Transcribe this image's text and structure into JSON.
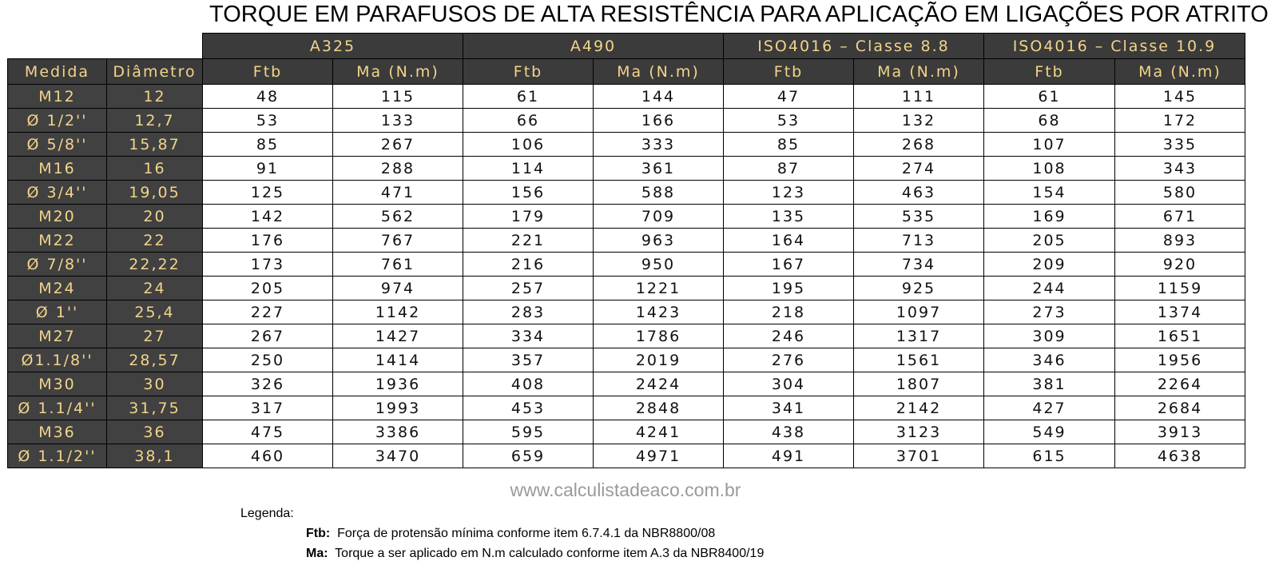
{
  "title": "TORQUE EM PARAFUSOS DE ALTA RESISTÊNCIA PARA APLICAÇÃO EM LIGAÇÕES POR ATRITO",
  "table": {
    "groups": [
      "A325",
      "A490",
      "ISO4016 – Classe 8.8",
      "ISO4016 – Classe 10.9"
    ],
    "columns": [
      "Medida",
      "Diâmetro",
      "Ftb",
      "Ma (N.m)",
      "Ftb",
      "Ma (N.m)",
      "Ftb",
      "Ma (N.m)",
      "Ftb",
      "Ma (N.m)"
    ],
    "rows": [
      [
        "M12",
        "12",
        48,
        115,
        61,
        144,
        47,
        111,
        61,
        145
      ],
      [
        "Ø 1/2''",
        "12,7",
        53,
        133,
        66,
        166,
        53,
        132,
        68,
        172
      ],
      [
        "Ø 5/8''",
        "15,87",
        85,
        267,
        106,
        333,
        85,
        268,
        107,
        335
      ],
      [
        "M16",
        "16",
        91,
        288,
        114,
        361,
        87,
        274,
        108,
        343
      ],
      [
        "Ø 3/4''",
        "19,05",
        125,
        471,
        156,
        588,
        123,
        463,
        154,
        580
      ],
      [
        "M20",
        "20",
        142,
        562,
        179,
        709,
        135,
        535,
        169,
        671
      ],
      [
        "M22",
        "22",
        176,
        767,
        221,
        963,
        164,
        713,
        205,
        893
      ],
      [
        "Ø 7/8''",
        "22,22",
        173,
        761,
        216,
        950,
        167,
        734,
        209,
        920
      ],
      [
        "M24",
        "24",
        205,
        974,
        257,
        1221,
        195,
        925,
        244,
        1159
      ],
      [
        "Ø 1''",
        "25,4",
        227,
        1142,
        283,
        1423,
        218,
        1097,
        273,
        1374
      ],
      [
        "M27",
        "27",
        267,
        1427,
        334,
        1786,
        246,
        1317,
        309,
        1651
      ],
      [
        "Ø1.1/8''",
        "28,57",
        250,
        1414,
        357,
        2019,
        276,
        1561,
        346,
        1956
      ],
      [
        "M30",
        "30",
        326,
        1936,
        408,
        2424,
        304,
        1807,
        381,
        2264
      ],
      [
        "Ø 1.1/4''",
        "31,75",
        317,
        1993,
        453,
        2848,
        341,
        2142,
        427,
        2684
      ],
      [
        "M36",
        "36",
        475,
        3386,
        595,
        4241,
        438,
        3123,
        549,
        3913
      ],
      [
        "Ø 1.1/2''",
        "38,1",
        460,
        3470,
        659,
        4971,
        491,
        3701,
        615,
        4638
      ]
    ]
  },
  "website": "www.calculistadeaco.com.br",
  "legend": {
    "heading": "Legenda:",
    "items": [
      {
        "term": "Ftb:",
        "text": "Força de protensão mínima conforme item 6.7.4.1 da NBR8800/08"
      },
      {
        "term": "Ma:",
        "text": "Torque a ser aplicado em N.m calculado conforme item A.3 da NBR8400/19"
      }
    ]
  }
}
